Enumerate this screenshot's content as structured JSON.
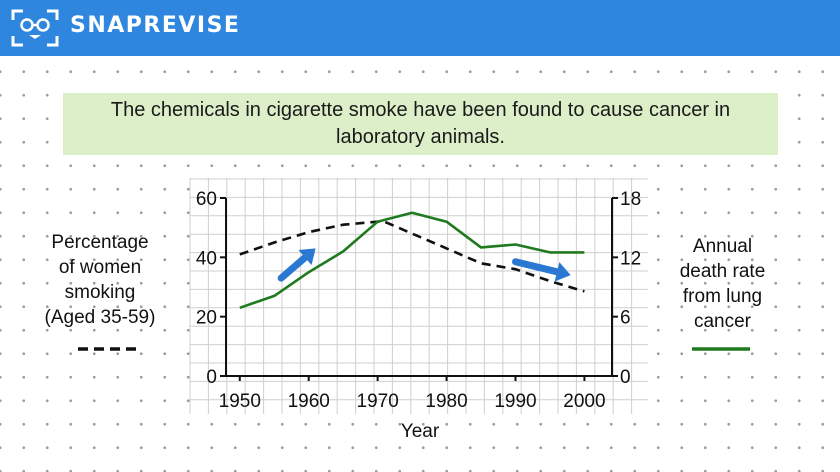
{
  "header": {
    "brand": "SNAPREVISE"
  },
  "banner": {
    "text": "The chemicals in cigarette smoke have been found to cause cancer in laboratory animals."
  },
  "legend_left": {
    "lines": [
      "Percentage",
      "of women",
      "smoking",
      "(Aged 35-59)"
    ],
    "style": "dashed"
  },
  "legend_right": {
    "lines": [
      "Annual",
      "death rate",
      "from lung",
      "cancer"
    ],
    "style": "solid",
    "color": "#1f7a1f"
  },
  "chart_data": {
    "type": "line",
    "xlabel": "Year",
    "x_ticks": [
      "1950",
      "1960",
      "1970",
      "1980",
      "1990",
      "2000"
    ],
    "xlim": [
      1948,
      2004
    ],
    "y_left": {
      "ticks": [
        "0",
        "20",
        "40",
        "60"
      ],
      "lim": [
        0,
        60
      ]
    },
    "y_right": {
      "ticks": [
        "0",
        "6",
        "12",
        "18"
      ],
      "lim": [
        0,
        18
      ]
    },
    "grid": true,
    "series": [
      {
        "axis": "left",
        "style": "dashed",
        "color": "#111111",
        "x": [
          1950,
          1955,
          1960,
          1965,
          1970,
          1971,
          1975,
          1980,
          1985,
          1990,
          1995,
          2000
        ],
        "y": [
          41,
          45,
          48.5,
          51,
          52,
          52,
          48,
          43,
          38,
          36,
          32,
          28.5
        ]
      },
      {
        "axis": "right",
        "style": "solid",
        "color": "#1f7a1f",
        "x": [
          1950,
          1955,
          1960,
          1965,
          1970,
          1975,
          1980,
          1985,
          1990,
          1995,
          2000
        ],
        "y": [
          6.9,
          8.1,
          10.5,
          12.6,
          15.6,
          16.5,
          15.6,
          13.0,
          13.3,
          12.5,
          12.5
        ]
      }
    ],
    "arrows": [
      {
        "color": "#2a78d2",
        "from": [
          1956,
          33
        ],
        "to": [
          1961,
          43
        ]
      },
      {
        "color": "#2a78d2",
        "from": [
          1990,
          38.5
        ],
        "to": [
          1998,
          34
        ]
      }
    ]
  }
}
